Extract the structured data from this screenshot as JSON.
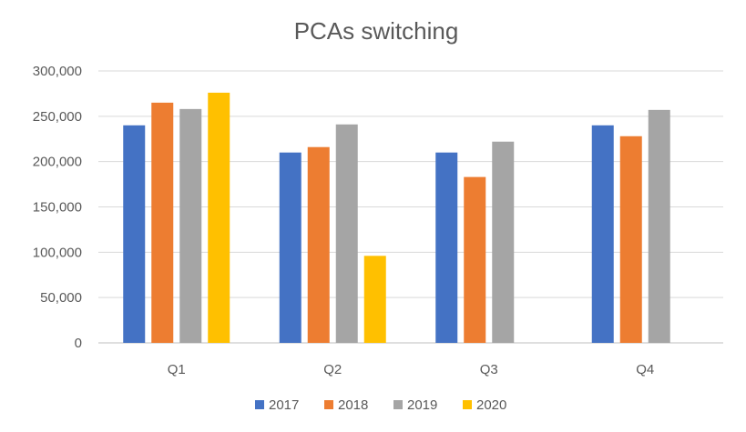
{
  "chart_data": {
    "type": "bar",
    "title": "PCAs switching",
    "xlabel": "",
    "ylabel": "",
    "categories": [
      "Q1",
      "Q2",
      "Q3",
      "Q4"
    ],
    "series": [
      {
        "name": "2017",
        "color": "#4472C4",
        "values": [
          240000,
          210000,
          210000,
          240000
        ]
      },
      {
        "name": "2018",
        "color": "#ED7D31",
        "values": [
          265000,
          216000,
          183000,
          228000
        ]
      },
      {
        "name": "2019",
        "color": "#A5A5A5",
        "values": [
          258000,
          241000,
          222000,
          257000
        ]
      },
      {
        "name": "2020",
        "color": "#FFC000",
        "values": [
          276000,
          96000,
          null,
          null
        ]
      }
    ],
    "ylim": [
      0,
      300000
    ],
    "yticks": [
      "0",
      "50,000",
      "100,000",
      "150,000",
      "200,000",
      "250,000",
      "300,000"
    ],
    "grid": true,
    "legend_position": "bottom"
  }
}
